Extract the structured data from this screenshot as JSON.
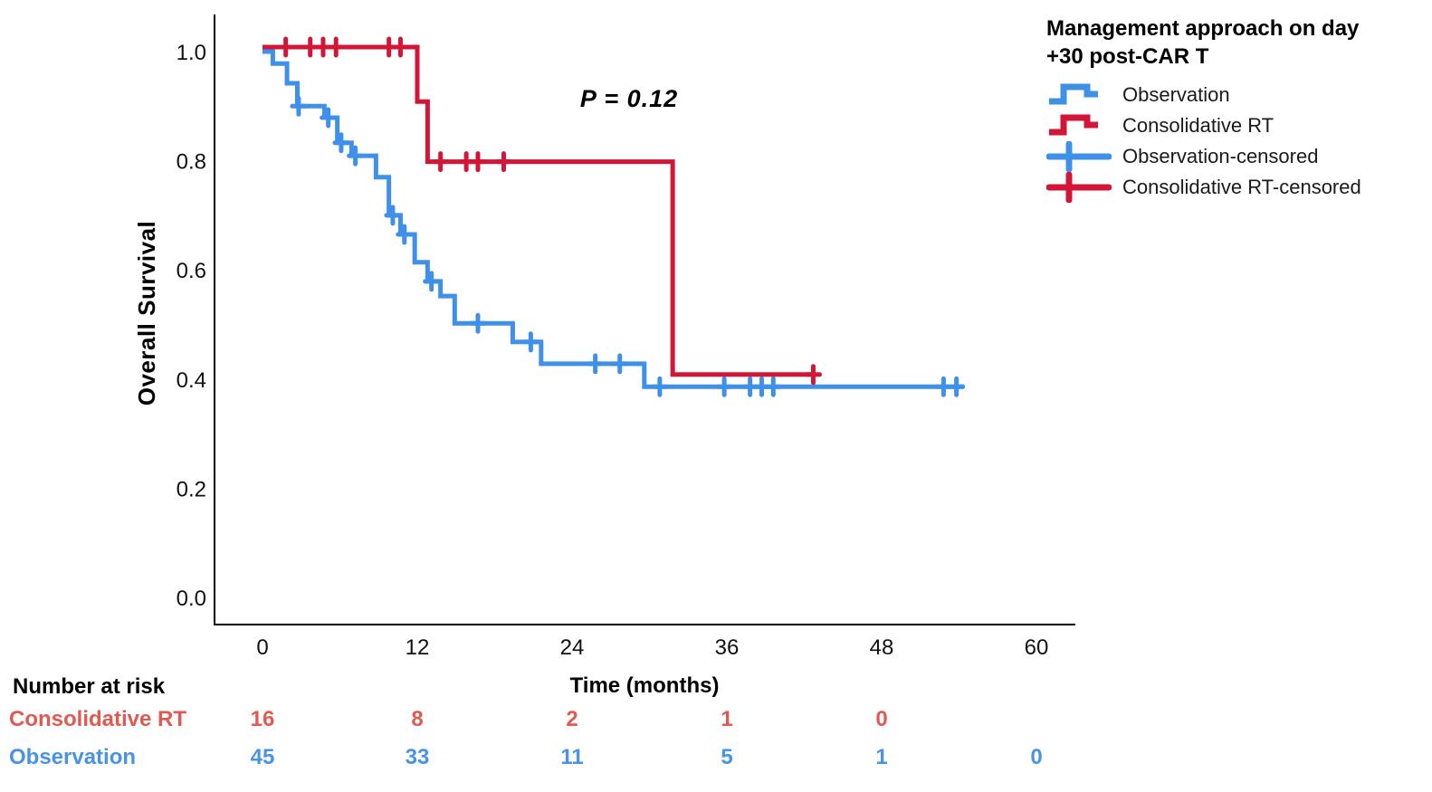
{
  "chart_data": {
    "type": "line",
    "subtype": "kaplan-meier-step",
    "xlabel": "Time (months)",
    "ylabel": "Overall Survival",
    "p_value": "P = 0.12",
    "x_ticks": [
      0,
      12,
      24,
      36,
      48,
      60
    ],
    "y_tick_values": [
      0.0,
      0.2,
      0.4,
      0.6,
      0.8,
      1.0
    ],
    "y_tick_labels": [
      "0.0",
      "0.2",
      "0.4",
      "0.6",
      "0.8",
      "1.0"
    ],
    "xlim": [
      0,
      60
    ],
    "ylim": [
      0.0,
      1.0
    ],
    "grid": "off",
    "legend_position": "top-right",
    "series": [
      {
        "name": "Observation",
        "color": "#3F90E8",
        "steps": [
          [
            0,
            1.0
          ],
          [
            0.8,
            0.978
          ],
          [
            1.9,
            0.942
          ],
          [
            2.7,
            0.9
          ],
          [
            4.8,
            0.879
          ],
          [
            5.8,
            0.833
          ],
          [
            6.9,
            0.809
          ],
          [
            8.8,
            0.77
          ],
          [
            9.8,
            0.7
          ],
          [
            10.7,
            0.665
          ],
          [
            11.8,
            0.614
          ],
          [
            12.8,
            0.579
          ],
          [
            13.8,
            0.552
          ],
          [
            14.9,
            0.502
          ],
          [
            19.4,
            0.468
          ],
          [
            21.6,
            0.428
          ],
          [
            29.6,
            0.386
          ]
        ],
        "end_time": 54.4,
        "censor_times": [
          2.8,
          5.1,
          6.1,
          7.2,
          10.1,
          11.0,
          13.1,
          16.7,
          20.8,
          25.8,
          27.7,
          30.8,
          35.8,
          37.8,
          38.7,
          39.6,
          52.8,
          53.8
        ]
      },
      {
        "name": "Consolidative RT",
        "color": "#D31638",
        "steps": [
          [
            0,
            1.0
          ],
          [
            12.0,
            0.9
          ],
          [
            12.8,
            0.79
          ],
          [
            31.8,
            0.4
          ]
        ],
        "end_time": 42.7,
        "censor_times": [
          1.8,
          3.7,
          4.7,
          5.7,
          9.8,
          10.7,
          13.8,
          15.8,
          16.7,
          18.7,
          42.7
        ]
      }
    ],
    "risk_table": {
      "header": "Number at risk",
      "rows": [
        {
          "label": "Consolidative RT",
          "color": "#E05A52",
          "values": [
            "16",
            "8",
            "2",
            "1",
            "0"
          ]
        },
        {
          "label": "Observation",
          "color": "#4693E8",
          "values": [
            "45",
            "33",
            "11",
            "5",
            "1",
            "0"
          ]
        }
      ]
    }
  },
  "legend": {
    "title_line1": "Management approach on day",
    "title_line2": "+30 post-CAR T",
    "items": [
      {
        "label": "Observation",
        "glyph": "step",
        "color": "#3F90E8"
      },
      {
        "label": "Consolidative RT",
        "glyph": "step",
        "color": "#D31638"
      },
      {
        "label": "Observation-censored",
        "glyph": "plus",
        "color": "#3F90E8"
      },
      {
        "label": "Consolidative RT-censored",
        "glyph": "plus",
        "color": "#D31638"
      }
    ]
  }
}
